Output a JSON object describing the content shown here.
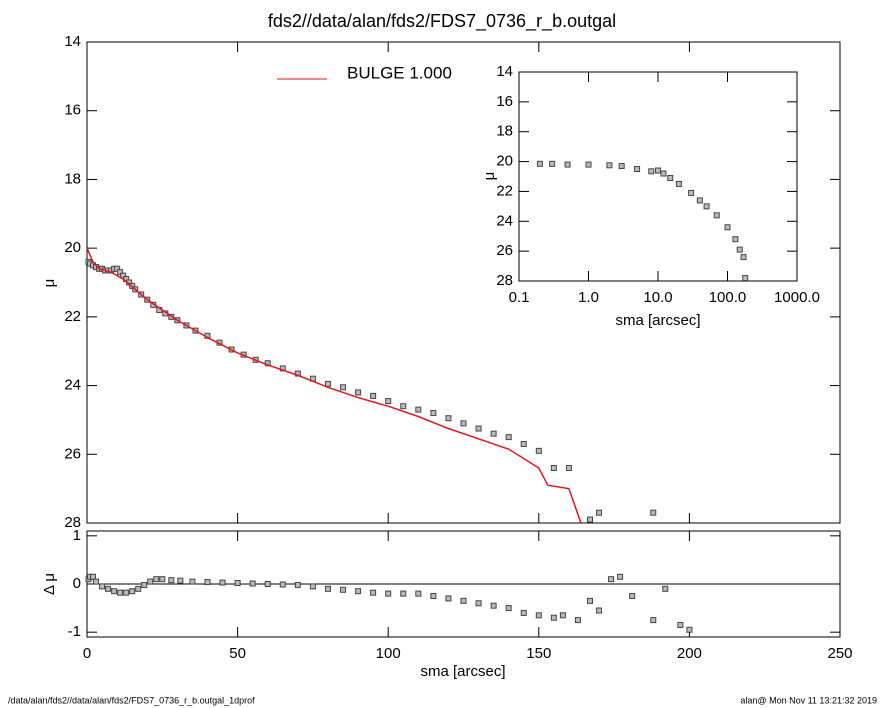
{
  "chart_data": [
    {
      "type": "scatter",
      "title": "fds2//data/alan/fds2/FDS7_0736_r_b.outgal",
      "ylabel": "μ",
      "xlim": [
        0,
        250
      ],
      "ylim": [
        14,
        28
      ],
      "y_inverted": true,
      "yticks": [
        14,
        16,
        18,
        20,
        22,
        24,
        26,
        28
      ],
      "series": [
        {
          "style": "square",
          "color": "#444444",
          "x": [
            0.5,
            1,
            2,
            3,
            4,
            5,
            6,
            7,
            8,
            9,
            10,
            11,
            12,
            13,
            14,
            15,
            16,
            18,
            20,
            22,
            24,
            26,
            28,
            30,
            33,
            36,
            40,
            44,
            48,
            52,
            56,
            60,
            65,
            70,
            75,
            80,
            85,
            90,
            95,
            100,
            105,
            110,
            115,
            120,
            125,
            130,
            135,
            140,
            145,
            150,
            155,
            160,
            167,
            170,
            188
          ],
          "values": [
            20.4,
            20.45,
            20.5,
            20.55,
            20.6,
            20.6,
            20.65,
            20.65,
            20.65,
            20.6,
            20.6,
            20.7,
            20.8,
            20.9,
            21.0,
            21.1,
            21.2,
            21.35,
            21.5,
            21.65,
            21.8,
            21.9,
            22.0,
            22.1,
            22.25,
            22.4,
            22.55,
            22.75,
            22.95,
            23.1,
            23.25,
            23.35,
            23.5,
            23.65,
            23.8,
            23.95,
            24.05,
            24.2,
            24.3,
            24.45,
            24.6,
            24.7,
            24.8,
            24.95,
            25.1,
            25.25,
            25.4,
            25.5,
            25.7,
            25.9,
            26.4,
            26.4,
            27.9,
            27.7,
            27.7
          ]
        },
        {
          "style": "line",
          "name": "BULGE  1.000",
          "color": "#e8141c",
          "x": [
            0,
            2,
            4,
            8,
            12,
            16,
            20,
            30,
            40,
            50,
            60,
            70,
            80,
            90,
            100,
            110,
            120,
            130,
            140,
            150,
            153,
            160,
            164
          ],
          "values": [
            20.0,
            20.4,
            20.6,
            20.7,
            20.9,
            21.2,
            21.5,
            22.1,
            22.6,
            23.05,
            23.4,
            23.7,
            24.05,
            24.35,
            24.6,
            24.9,
            25.25,
            25.55,
            25.85,
            26.4,
            26.9,
            27.0,
            28.0
          ]
        }
      ]
    },
    {
      "type": "scatter",
      "xlabel": "sma [arcsec]",
      "ylabel": "Δ μ",
      "xlim": [
        0,
        250
      ],
      "ylim": [
        -1.1,
        1.1
      ],
      "xticks": [
        0,
        50,
        100,
        150,
        200,
        250
      ],
      "yticks": [
        -1,
        0,
        1
      ],
      "zero_line": true,
      "series": [
        {
          "style": "square",
          "color": "#444444",
          "x": [
            0.5,
            1,
            2,
            3,
            5,
            7,
            9,
            11,
            13,
            15,
            17,
            19,
            21,
            23,
            25,
            28,
            31,
            35,
            40,
            45,
            50,
            55,
            60,
            65,
            70,
            75,
            80,
            85,
            90,
            95,
            100,
            105,
            110,
            115,
            120,
            125,
            130,
            135,
            140,
            145,
            150,
            155,
            158,
            163,
            167,
            170,
            174,
            177,
            181,
            188,
            192,
            197,
            200
          ],
          "values": [
            0.1,
            0.15,
            0.15,
            0.05,
            -0.05,
            -0.1,
            -0.15,
            -0.18,
            -0.18,
            -0.15,
            -0.1,
            -0.02,
            0.05,
            0.1,
            0.1,
            0.08,
            0.07,
            0.05,
            0.04,
            0.03,
            0.02,
            0.01,
            0.0,
            -0.01,
            -0.02,
            -0.05,
            -0.1,
            -0.12,
            -0.15,
            -0.18,
            -0.2,
            -0.2,
            -0.2,
            -0.25,
            -0.3,
            -0.35,
            -0.4,
            -0.45,
            -0.5,
            -0.6,
            -0.65,
            -0.7,
            -0.65,
            -0.75,
            -0.35,
            -0.55,
            0.1,
            0.15,
            -0.25,
            -0.75,
            -0.1,
            -0.85,
            -0.95
          ]
        }
      ]
    },
    {
      "type": "scatter",
      "xlabel": "sma [arcsec]",
      "ylabel": "μ",
      "log_x": true,
      "xlim": [
        0.1,
        1000
      ],
      "ylim": [
        14,
        28
      ],
      "y_inverted": true,
      "xticks": [
        0.1,
        {
          "value": 1,
          "label": "1.0"
        },
        {
          "value": 10,
          "label": "10.0"
        },
        {
          "value": 100,
          "label": "100.0"
        },
        {
          "value": 1000,
          "label": "1000.0"
        }
      ],
      "yticks": [
        14,
        16,
        18,
        20,
        22,
        24,
        26,
        28
      ],
      "series": [
        {
          "style": "square",
          "color": "#444444",
          "x": [
            0.2,
            0.3,
            0.5,
            1,
            2,
            3,
            5,
            8,
            10,
            12,
            15,
            20,
            30,
            40,
            50,
            70,
            100,
            130,
            150,
            170,
            180
          ],
          "values": [
            20.15,
            20.15,
            20.2,
            20.2,
            20.25,
            20.3,
            20.5,
            20.65,
            20.6,
            20.8,
            21.1,
            21.5,
            22.1,
            22.6,
            23.0,
            23.6,
            24.4,
            25.2,
            25.9,
            26.4,
            27.8
          ]
        }
      ]
    }
  ],
  "footer": {
    "left": "/data/alan/fds2//data/alan/fds2/FDS7_0736_r_b.outgal_1dprof",
    "right": "alan@  Mon Nov 11 13:21:32 2019"
  }
}
